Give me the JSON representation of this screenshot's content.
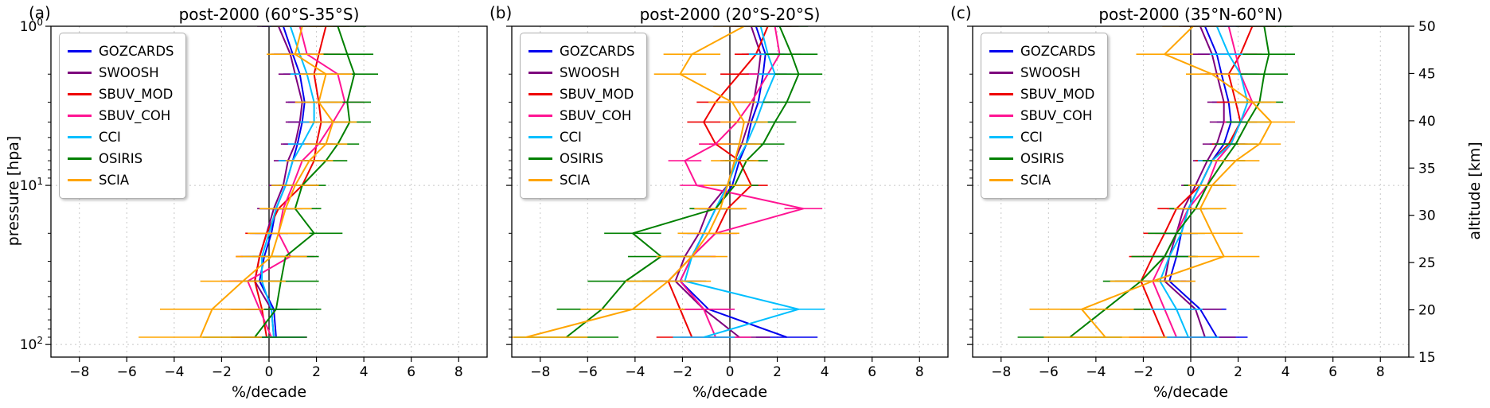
{
  "axes": {
    "xlabel": "%/decade",
    "ylabel": "pressure [hpa]",
    "altitude_label": "altitude [km]",
    "xlim": [
      -9.2,
      9.2
    ],
    "xticks": [
      -8,
      -6,
      -4,
      -2,
      0,
      2,
      4,
      6,
      8
    ],
    "xtick_labels": [
      "−8",
      "−6",
      "−4",
      "−2",
      "0",
      "2",
      "4",
      "6",
      "8"
    ],
    "ylim": [
      1,
      100
    ],
    "yticks": [
      1,
      10,
      100
    ],
    "ytick_base": "10",
    "ytick_exponents": [
      "0",
      "1",
      "2"
    ],
    "y_minor_ticks": [
      2,
      3,
      4,
      5,
      6,
      7,
      8,
      9,
      20,
      30,
      40,
      50,
      60,
      70,
      80,
      90
    ],
    "altitude_ticks": [
      50,
      45,
      40,
      35,
      30,
      25,
      20,
      15
    ],
    "grid": "dashed",
    "zero_line_color": "#000000",
    "grid_color": "#c8c8c8",
    "legend_position": "upper left"
  },
  "pressure_levels": [
    1.0,
    1.5,
    2.0,
    3.0,
    4.0,
    5.5,
    7.0,
    10,
    14,
    20,
    28,
    40,
    60,
    90
  ],
  "chart_data": [
    {
      "type": "line",
      "letter": "(a)",
      "title": "post-2000 (60°S-35°S)",
      "xlabel": "%/decade",
      "series": [
        {
          "name": "GOZCARDS",
          "color": "#0000ee",
          "values": [
            0.6,
            1.0,
            1.3,
            1.5,
            1.4,
            1.2,
            1.0,
            0.7,
            0.3,
            0.1,
            -0.2,
            -0.4,
            0.2,
            0.3
          ],
          "err": [
            0.9,
            0.8,
            0.7,
            0.7,
            0.6,
            0.6,
            0.6,
            0.6,
            0.7,
            0.7,
            0.8,
            0.9,
            1.1,
            1.3
          ]
        },
        {
          "name": "SWOOSH",
          "color": "#7d007d",
          "values": [
            0.4,
            0.9,
            1.1,
            1.4,
            1.3,
            1.1,
            0.8,
            0.6,
            0.2,
            -0.1,
            -0.4,
            -0.6,
            0.1,
            0.2
          ],
          "err": [
            0.9,
            0.8,
            0.7,
            0.7,
            0.6,
            0.6,
            0.6,
            0.6,
            0.7,
            0.7,
            0.8,
            0.9,
            1.1,
            1.3
          ]
        },
        {
          "name": "SBUV_MOD",
          "color": "#ee0000",
          "values": [
            2.4,
            2.1,
            1.9,
            2.1,
            2.2,
            2.0,
            1.9,
            1.4,
            0.4,
            -0.1,
            -0.4,
            -0.6,
            -0.3,
            -0.1
          ],
          "err": [
            1.0,
            0.9,
            0.8,
            0.8,
            0.7,
            0.7,
            0.7,
            0.7,
            0.8,
            0.9,
            1.0,
            1.1,
            1.3,
            1.5
          ]
        },
        {
          "name": "SBUV_COH",
          "color": "#ff1493",
          "values": [
            1.3,
            1.6,
            2.9,
            3.2,
            2.7,
            2.1,
            1.4,
            1.0,
            0.6,
            0.4,
            0.9,
            -0.9,
            -0.4,
            0.1
          ],
          "err": [
            1.0,
            0.9,
            0.8,
            0.8,
            0.7,
            0.7,
            0.7,
            0.7,
            0.8,
            0.9,
            1.0,
            1.1,
            1.3,
            1.5
          ]
        },
        {
          "name": "CCI",
          "color": "#00bfff",
          "values": [
            0.9,
            1.3,
            1.6,
            1.9,
            1.9,
            1.4,
            1.0,
            0.7,
            0.3,
            0.0,
            -0.3,
            -0.3,
            0.1,
            0.2
          ],
          "err": [
            0.9,
            0.8,
            0.7,
            0.7,
            0.6,
            0.6,
            0.6,
            0.6,
            0.7,
            0.7,
            0.8,
            0.9,
            1.1,
            1.3
          ]
        },
        {
          "name": "OSIRIS",
          "color": "#008000",
          "values": [
            2.9,
            3.3,
            3.6,
            3.3,
            3.4,
            2.9,
            2.4,
            1.4,
            1.1,
            1.9,
            0.7,
            0.5,
            0.3,
            -0.6
          ],
          "err": [
            1.2,
            1.1,
            1.0,
            1.0,
            0.9,
            0.9,
            0.9,
            1.0,
            1.1,
            1.2,
            1.4,
            1.6,
            1.9,
            2.2
          ]
        },
        {
          "name": "SCIA",
          "color": "#ffa500",
          "values": [
            1.4,
            1.1,
            2.4,
            2.1,
            2.7,
            2.4,
            1.7,
            1.1,
            0.7,
            0.4,
            0.1,
            -1.1,
            -2.4,
            -2.9
          ],
          "err": [
            1.3,
            1.2,
            1.1,
            1.0,
            1.0,
            0.9,
            1.0,
            1.0,
            1.1,
            1.3,
            1.5,
            1.8,
            2.2,
            2.6
          ]
        }
      ]
    },
    {
      "type": "line",
      "letter": "(b)",
      "title": "post-2000 (20°S-20°S)",
      "xlabel": "%/decade",
      "series": [
        {
          "name": "GOZCARDS",
          "color": "#0000ee",
          "values": [
            1.1,
            1.5,
            1.4,
            1.2,
            0.9,
            0.7,
            0.4,
            0.1,
            -0.6,
            -1.1,
            -1.6,
            -2.1,
            -0.9,
            2.4
          ],
          "err": [
            0.9,
            0.8,
            0.7,
            0.7,
            0.6,
            0.6,
            0.6,
            0.6,
            0.7,
            0.7,
            0.8,
            0.9,
            1.1,
            1.3
          ]
        },
        {
          "name": "SWOOSH",
          "color": "#7d007d",
          "values": [
            0.9,
            1.3,
            1.2,
            1.0,
            0.8,
            0.5,
            0.2,
            -0.1,
            -0.9,
            -1.3,
            -1.9,
            -2.3,
            -1.1,
            0.4
          ],
          "err": [
            0.9,
            0.8,
            0.7,
            0.7,
            0.6,
            0.6,
            0.6,
            0.6,
            0.7,
            0.7,
            0.8,
            0.9,
            1.1,
            1.3
          ]
        },
        {
          "name": "SBUV_MOD",
          "color": "#ee0000",
          "values": [
            1.6,
            1.1,
            0.4,
            -0.6,
            -1.1,
            -0.6,
            0.4,
            0.9,
            -0.1,
            -0.6,
            -1.6,
            -2.6,
            -2.1,
            -1.6
          ],
          "err": [
            1.0,
            0.9,
            0.8,
            0.8,
            0.7,
            0.7,
            0.7,
            0.7,
            0.8,
            0.9,
            1.0,
            1.1,
            1.3,
            1.5
          ]
        },
        {
          "name": "SBUV_COH",
          "color": "#ff1493",
          "values": [
            1.9,
            2.1,
            1.6,
            0.9,
            0.3,
            -0.6,
            -1.9,
            -1.4,
            3.1,
            -0.6,
            -1.6,
            -2.1,
            -1.1,
            -0.6
          ],
          "err": [
            1.0,
            0.9,
            0.8,
            0.8,
            0.7,
            0.7,
            0.7,
            0.7,
            0.8,
            0.9,
            1.0,
            1.1,
            1.3,
            1.5
          ]
        },
        {
          "name": "CCI",
          "color": "#00bfff",
          "values": [
            1.3,
            1.6,
            1.9,
            1.4,
            1.1,
            0.7,
            0.3,
            -0.1,
            -0.6,
            -1.1,
            -1.6,
            -1.9,
            2.9,
            -1.1
          ],
          "err": [
            0.9,
            0.8,
            0.7,
            0.7,
            0.6,
            0.6,
            0.6,
            0.6,
            0.7,
            0.7,
            0.8,
            0.9,
            1.1,
            1.3
          ]
        },
        {
          "name": "OSIRIS",
          "color": "#008000",
          "values": [
            2.1,
            2.6,
            2.9,
            2.4,
            1.9,
            1.4,
            0.7,
            0.2,
            -0.6,
            -4.1,
            -2.9,
            -4.4,
            -5.4,
            -6.9
          ],
          "err": [
            1.2,
            1.1,
            1.0,
            1.0,
            0.9,
            0.9,
            0.9,
            1.0,
            1.1,
            1.2,
            1.4,
            1.6,
            1.9,
            2.2
          ]
        },
        {
          "name": "SCIA",
          "color": "#ffa500",
          "values": [
            0.6,
            -1.6,
            -2.1,
            0.1,
            0.6,
            0.4,
            0.2,
            -0.1,
            -0.4,
            -0.9,
            -1.6,
            -2.6,
            -4.1,
            -8.6
          ],
          "err": [
            1.3,
            1.2,
            1.1,
            1.0,
            1.0,
            0.9,
            1.0,
            1.0,
            1.1,
            1.3,
            1.5,
            1.8,
            2.2,
            2.6
          ]
        }
      ]
    },
    {
      "type": "line",
      "letter": "(c)",
      "title": "post-2000 (35°N-60°N)",
      "xlabel": "%/decade",
      "series": [
        {
          "name": "GOZCARDS",
          "color": "#0000ee",
          "values": [
            0.6,
            1.1,
            1.3,
            1.6,
            1.7,
            1.4,
            0.9,
            0.4,
            -0.1,
            -0.4,
            -0.6,
            -0.9,
            0.4,
            1.1
          ],
          "err": [
            0.9,
            0.8,
            0.7,
            0.7,
            0.6,
            0.6,
            0.6,
            0.6,
            0.7,
            0.7,
            0.8,
            0.9,
            1.1,
            1.3
          ]
        },
        {
          "name": "SWOOSH",
          "color": "#7d007d",
          "values": [
            0.4,
            0.9,
            1.1,
            1.4,
            1.4,
            1.1,
            0.7,
            0.2,
            -0.3,
            -0.6,
            -0.9,
            -1.1,
            0.2,
            0.6
          ],
          "err": [
            0.9,
            0.8,
            0.7,
            0.7,
            0.6,
            0.6,
            0.6,
            0.6,
            0.7,
            0.7,
            0.8,
            0.9,
            1.1,
            1.3
          ]
        },
        {
          "name": "SBUV_MOD",
          "color": "#ee0000",
          "values": [
            2.6,
            2.1,
            1.6,
            1.9,
            2.1,
            1.6,
            0.9,
            0.4,
            -0.6,
            -1.1,
            -1.6,
            -2.1,
            -1.6,
            -1.1
          ],
          "err": [
            1.0,
            0.9,
            0.8,
            0.8,
            0.7,
            0.7,
            0.7,
            0.7,
            0.8,
            0.9,
            1.0,
            1.1,
            1.3,
            1.5
          ]
        },
        {
          "name": "SBUV_COH",
          "color": "#ff1493",
          "values": [
            1.6,
            1.9,
            2.1,
            2.6,
            2.1,
            1.7,
            1.1,
            0.7,
            -0.1,
            -0.6,
            -1.1,
            -1.6,
            -1.1,
            -0.6
          ],
          "err": [
            1.0,
            0.9,
            0.8,
            0.8,
            0.7,
            0.7,
            0.7,
            0.7,
            0.8,
            0.9,
            1.0,
            1.1,
            1.3,
            1.5
          ]
        },
        {
          "name": "CCI",
          "color": "#00bfff",
          "values": [
            1.1,
            1.6,
            2.1,
            2.4,
            2.1,
            1.7,
            0.9,
            0.4,
            -0.1,
            -0.4,
            -0.9,
            -1.3,
            -0.6,
            -0.1
          ],
          "err": [
            0.9,
            0.8,
            0.7,
            0.7,
            0.6,
            0.6,
            0.6,
            0.6,
            0.7,
            0.7,
            0.8,
            0.9,
            1.1,
            1.3
          ]
        },
        {
          "name": "OSIRIS",
          "color": "#008000",
          "values": [
            3.1,
            3.3,
            3.1,
            2.9,
            2.4,
            1.9,
            1.4,
            0.7,
            0.2,
            -0.6,
            -1.1,
            -2.1,
            -3.6,
            -5.1
          ],
          "err": [
            1.2,
            1.1,
            1.0,
            1.0,
            0.9,
            0.9,
            0.9,
            1.0,
            1.1,
            1.2,
            1.4,
            1.6,
            1.9,
            2.2
          ]
        },
        {
          "name": "SCIA",
          "color": "#ffa500",
          "values": [
            0.1,
            -1.1,
            0.9,
            2.6,
            3.4,
            2.9,
            1.9,
            0.9,
            0.4,
            0.9,
            1.4,
            -1.6,
            -4.6,
            -3.6
          ],
          "err": [
            1.3,
            1.2,
            1.1,
            1.0,
            1.0,
            0.9,
            1.0,
            1.0,
            1.1,
            1.3,
            1.5,
            1.8,
            2.2,
            2.6
          ]
        }
      ]
    }
  ]
}
